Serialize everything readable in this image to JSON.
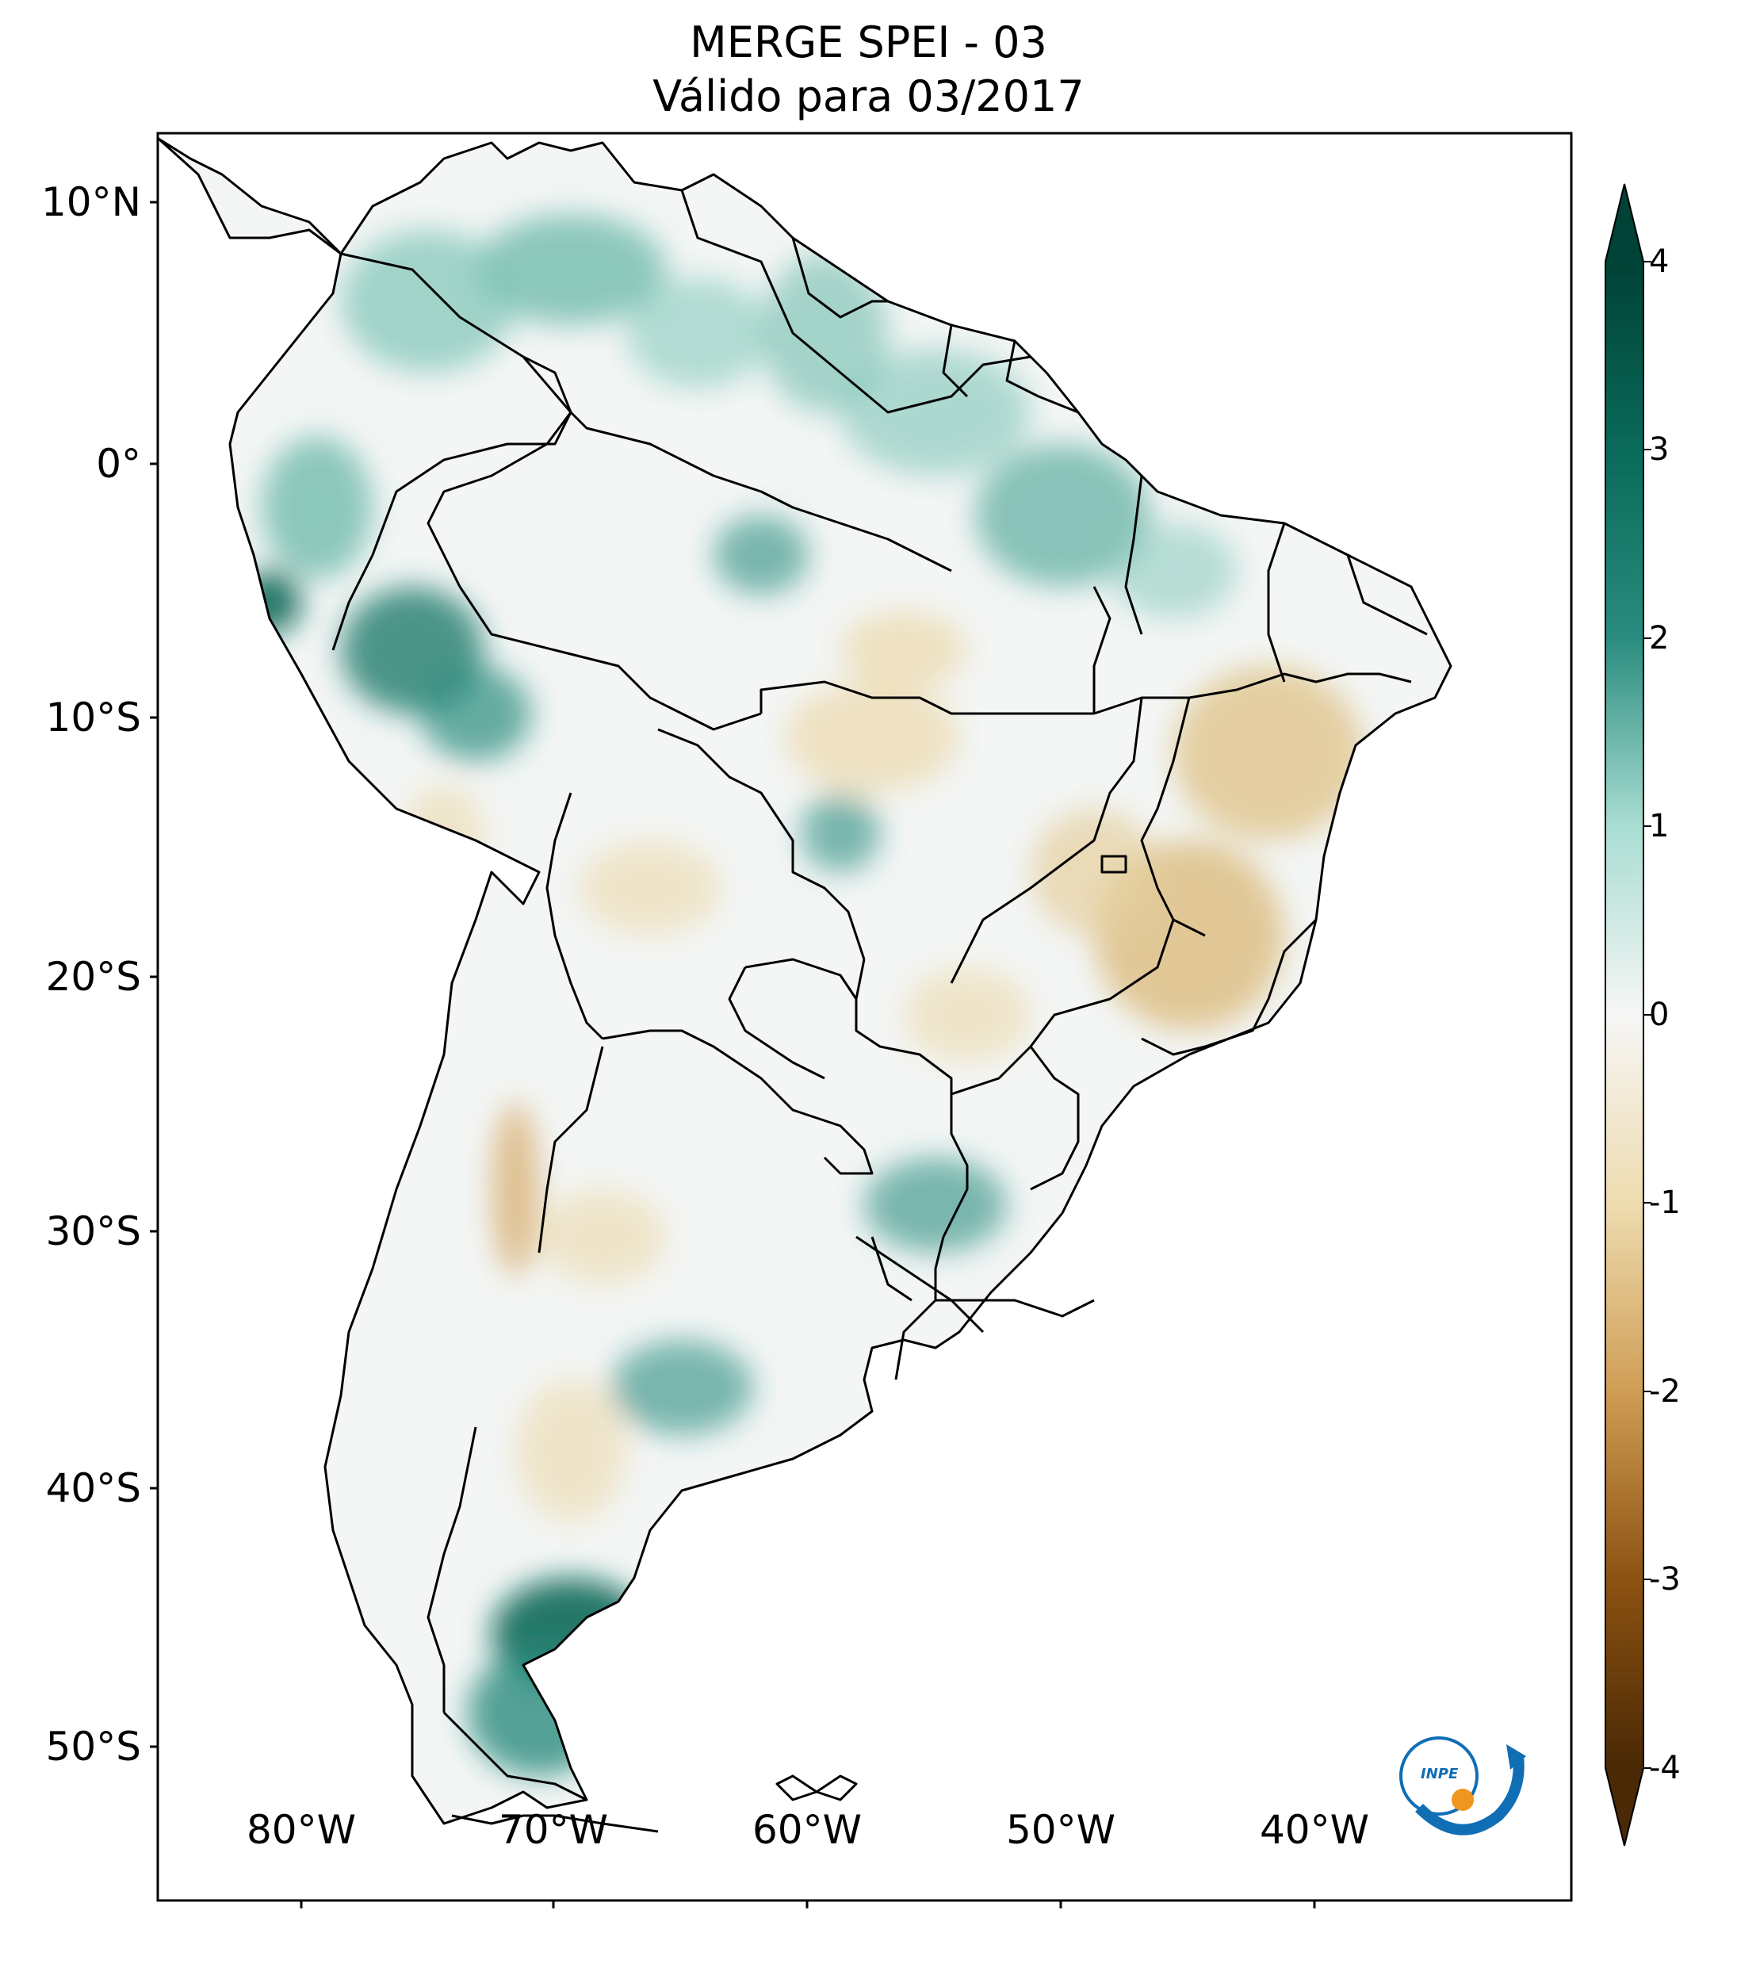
{
  "title": {
    "line1": "MERGE   SPEI - 03",
    "line2": "Válido para 03/2017"
  },
  "lat_labels": [
    "10°N",
    "0°",
    "10°S",
    "20°S",
    "30°S",
    "40°S",
    "50°S"
  ],
  "lon_labels": [
    "80°W",
    "70°W",
    "60°W",
    "50°W",
    "40°W"
  ],
  "colorbar": {
    "ticks": [
      "4",
      "3",
      "2",
      "1",
      "0",
      "-1",
      "-2",
      "-3",
      "-4"
    ],
    "min": -4,
    "max": 4,
    "colors": {
      "very_wet": "#004235",
      "wet": "#2a8c7e",
      "moist": "#a9ddd2",
      "neutral": "#f6f6f6",
      "dry": "#eedcb0",
      "moderate_dry": "#cf9d55",
      "very_dry": "#4a2906"
    }
  },
  "logo_text": "INPE",
  "colors": {
    "border": "#000000",
    "logo_blue": "#0f6eb4",
    "logo_orange": "#f0961e"
  }
}
